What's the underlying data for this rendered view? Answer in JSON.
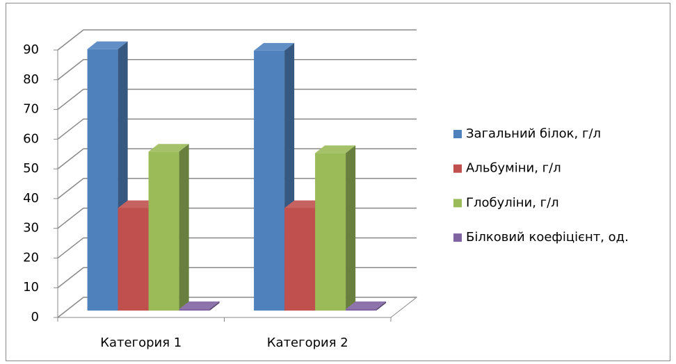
{
  "chart_data": {
    "type": "bar3d",
    "categories": [
      "Категория 1",
      "Категория 2"
    ],
    "series": [
      {
        "name": "Загальний білок, г/л",
        "color": "#4F81BD",
        "values": [
          88,
          87.5
        ]
      },
      {
        "name": "Альбуміни, г/л",
        "color": "#C0504D",
        "values": [
          34.5,
          34.5
        ]
      },
      {
        "name": "Глобуліни, г/л",
        "color": "#9BBB59",
        "values": [
          53.5,
          53
        ]
      },
      {
        "name": "Білковий коефіцієнт, од.",
        "color": "#8064A2",
        "values": [
          0.5,
          0.5
        ]
      }
    ],
    "ylim": [
      0,
      90
    ],
    "yticks": [
      0,
      10,
      20,
      30,
      40,
      50,
      60,
      70,
      80,
      90
    ],
    "grid": true,
    "legend": "right"
  }
}
